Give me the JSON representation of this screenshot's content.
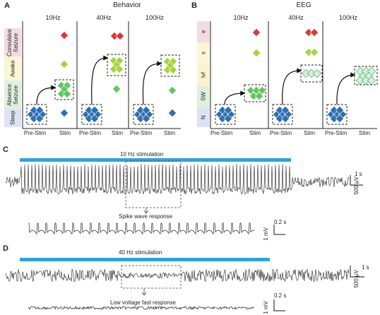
{
  "panels": {
    "A": {
      "letter": "A",
      "title": "Behavior",
      "freqs": [
        "10Hz",
        "40Hz",
        "100Hz"
      ],
      "ylabels": [
        "Convulsive Seizure",
        "Awake",
        "Absence Seizure",
        "Sleep"
      ],
      "xlabels": [
        "Pre-Stim",
        "Stim"
      ]
    },
    "B": {
      "letter": "B",
      "title": "EEG",
      "freqs": [
        "10Hz",
        "40Hz",
        "100Hz"
      ],
      "ylabels": [
        "e",
        "s",
        "lvf",
        "SW",
        "N"
      ],
      "xlabels": [
        "Pre-Stim",
        "Stim"
      ]
    },
    "C": {
      "letter": "C",
      "stim_label": "10 Hz stimulation",
      "zoom_label": "Spike wave response",
      "scale_time": "1 s",
      "scale_volt": "500 µV",
      "zoom_time": "0.2 s",
      "zoom_volt": "1 mV"
    },
    "D": {
      "letter": "D",
      "stim_label": "40 Hz stimulation",
      "zoom_label": "Low voltage fast response",
      "scale_time": "1 s",
      "scale_volt": "500 µV",
      "zoom_time": "0.2 s",
      "zoom_volt": "1 mV"
    }
  },
  "colors": {
    "blue_diamond": "#2e6fb0",
    "green_diamond": "#5cc85c",
    "lime_diamond": "#a6d43a",
    "red_diamond": "#d83a3a",
    "light_diamond": "#d8f0dc",
    "stim_bar": "#2fa4dc",
    "band_seizure": "#f3dbe0",
    "band_awake": "#fbf6d6",
    "band_absence": "#dff0df",
    "band_sleep": "#dde3f2"
  }
}
